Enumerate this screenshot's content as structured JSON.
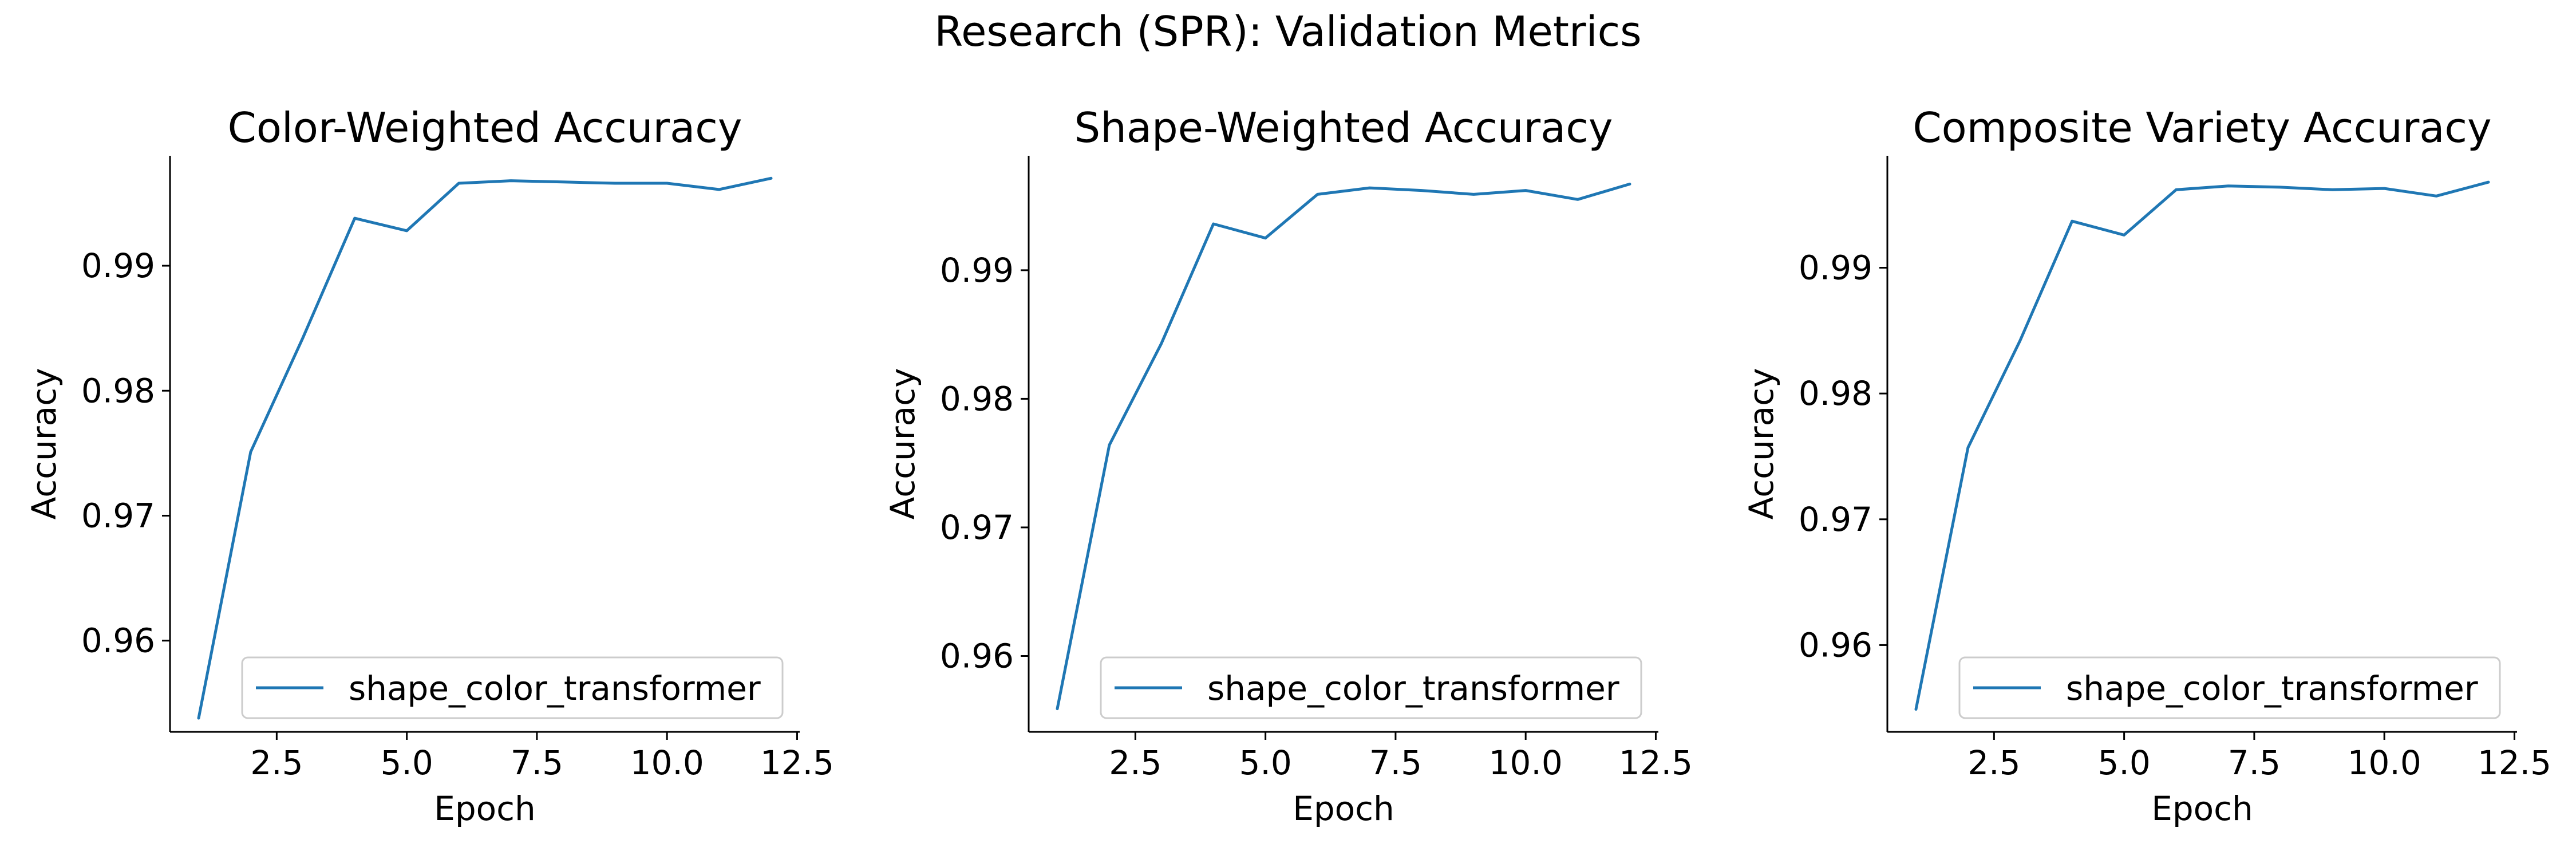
{
  "figure": {
    "title": "Research (SPR): Validation Metrics"
  },
  "chart_data": [
    {
      "type": "line",
      "title": "Color-Weighted Accuracy",
      "xlabel": "Epoch",
      "ylabel": "Accuracy",
      "xlim": [
        0.45,
        12.55
      ],
      "ylim": [
        0.9527,
        0.9988
      ],
      "xticks": [
        2.5,
        5.0,
        7.5,
        10.0,
        12.5
      ],
      "xtick_labels": [
        "2.5",
        "5.0",
        "7.5",
        "10.0",
        "12.5"
      ],
      "yticks": [
        0.96,
        0.97,
        0.98,
        0.99
      ],
      "ytick_labels": [
        "0.96",
        "0.97",
        "0.98",
        "0.99"
      ],
      "grid": false,
      "legend_position": "lower-right",
      "series": [
        {
          "name": "shape_color_transformer",
          "color": "#1f77b4",
          "x": [
            1,
            2,
            3,
            4,
            5,
            6,
            7,
            8,
            9,
            10,
            11,
            12
          ],
          "values": [
            0.9538,
            0.9751,
            0.9842,
            0.9938,
            0.9928,
            0.9966,
            0.9968,
            0.9967,
            0.9966,
            0.9966,
            0.9961,
            0.997
          ]
        }
      ]
    },
    {
      "type": "line",
      "title": "Shape-Weighted Accuracy",
      "xlabel": "Epoch",
      "ylabel": "Accuracy",
      "xlim": [
        0.45,
        12.55
      ],
      "ylim": [
        0.9541,
        0.9989
      ],
      "xticks": [
        2.5,
        5.0,
        7.5,
        10.0,
        12.5
      ],
      "xtick_labels": [
        "2.5",
        "5.0",
        "7.5",
        "10.0",
        "12.5"
      ],
      "yticks": [
        0.96,
        0.97,
        0.98,
        0.99
      ],
      "ytick_labels": [
        "0.96",
        "0.97",
        "0.98",
        "0.99"
      ],
      "grid": false,
      "legend_position": "lower-right",
      "series": [
        {
          "name": "shape_color_transformer",
          "color": "#1f77b4",
          "x": [
            1,
            2,
            3,
            4,
            5,
            6,
            7,
            8,
            9,
            10,
            11,
            12
          ],
          "values": [
            0.9559,
            0.9764,
            0.9843,
            0.9936,
            0.9925,
            0.9959,
            0.9964,
            0.9962,
            0.9959,
            0.9962,
            0.9955,
            0.9967
          ]
        }
      ]
    },
    {
      "type": "line",
      "title": "Composite Variety Accuracy",
      "xlabel": "Epoch",
      "ylabel": "Accuracy",
      "xlim": [
        0.45,
        12.55
      ],
      "ylim": [
        0.9531,
        0.9989
      ],
      "xticks": [
        2.5,
        5.0,
        7.5,
        10.0,
        12.5
      ],
      "xtick_labels": [
        "2.5",
        "5.0",
        "7.5",
        "10.0",
        "12.5"
      ],
      "yticks": [
        0.96,
        0.97,
        0.98,
        0.99
      ],
      "ytick_labels": [
        "0.96",
        "0.97",
        "0.98",
        "0.99"
      ],
      "grid": false,
      "legend_position": "lower-right",
      "series": [
        {
          "name": "shape_color_transformer",
          "color": "#1f77b4",
          "x": [
            1,
            2,
            3,
            4,
            5,
            6,
            7,
            8,
            9,
            10,
            11,
            12
          ],
          "values": [
            0.9549,
            0.9757,
            0.9842,
            0.9937,
            0.9926,
            0.9962,
            0.9965,
            0.9964,
            0.9962,
            0.9963,
            0.9957,
            0.9968
          ]
        }
      ]
    }
  ]
}
